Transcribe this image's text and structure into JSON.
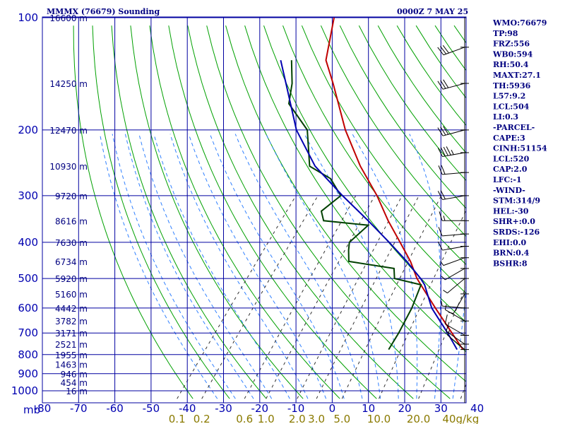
{
  "header": {
    "station": "MMMX (76679) Sounding",
    "time": "0000Z  7 MAY 25"
  },
  "indices": [
    "WMO:76679",
    "TP:98",
    "FRZ:556",
    "WB0:594",
    "RH:50.4",
    "MAXT:27.1",
    "TH:5936",
    "L57:9.2",
    "LCL:504",
    "LI:0.3",
    "-PARCEL-",
    "CAPE:3",
    "CINH:51154",
    "LCL:520",
    "CAP:2.0",
    "LFC:-1",
    "-WIND-",
    "STM:314/9",
    "HEL:-30",
    "SHR+:0.0",
    "SRDS:-126",
    "EHI:0.0",
    "BRN:0.4",
    "BSHR:8"
  ],
  "colors": {
    "isobar": "#0000a0",
    "isotherm": "#0000a0",
    "dry_adiabat": "#00a000",
    "moist_adiabat": "#3080ff",
    "mixing_ratio": "#303030",
    "temperature": "#c00000",
    "dewpoint": "#004000",
    "parcel": "#0000b0"
  },
  "chart_data": {
    "type": "skew-t",
    "pressure_axis": {
      "unit_label": "mb",
      "ticks": [
        100,
        200,
        300,
        400,
        500,
        600,
        700,
        800,
        900,
        1000
      ],
      "labels": [
        "100",
        "200",
        "300",
        "400",
        "500",
        "600",
        "700",
        "800",
        "900",
        "1000"
      ],
      "range": [
        100,
        1050
      ],
      "scale": "log"
    },
    "temperature_axis": {
      "ticks": [
        -80,
        -70,
        -60,
        -50,
        -40,
        -30,
        -20,
        -10,
        0,
        10,
        20,
        30,
        40
      ],
      "labels": [
        "-80",
        "-70",
        "-60",
        "-50",
        "-40",
        "-30",
        "-20",
        "-10",
        "0",
        "10",
        "20",
        "30",
        "40"
      ],
      "unit": "C"
    },
    "mixing_ratio_axis": {
      "labels": [
        "0.1",
        "0.2",
        "0.6",
        "1.0",
        "2.0",
        "3.0",
        "5.0",
        "10.0",
        "20.0",
        "40g/kg"
      ],
      "values": [
        0.1,
        0.2,
        0.6,
        1.0,
        2.0,
        3.0,
        5.0,
        10.0,
        20.0,
        40.0
      ]
    },
    "height_labels": [
      {
        "p": 100,
        "label": "16600 m"
      },
      {
        "p": 150,
        "label": "14250 m"
      },
      {
        "p": 200,
        "label": "12470 m"
      },
      {
        "p": 250,
        "label": "10930 m"
      },
      {
        "p": 300,
        "label": "9720 m"
      },
      {
        "p": 350,
        "label": "8616 m"
      },
      {
        "p": 400,
        "label": "7630 m"
      },
      {
        "p": 450,
        "label": "6734 m"
      },
      {
        "p": 500,
        "label": "5920 m"
      },
      {
        "p": 550,
        "label": "5160 m"
      },
      {
        "p": 600,
        "label": "4442 m"
      },
      {
        "p": 650,
        "label": "3782 m"
      },
      {
        "p": 700,
        "label": "3171 m"
      },
      {
        "p": 750,
        "label": "2521 m"
      },
      {
        "p": 800,
        "label": "1955 m"
      },
      {
        "p": 850,
        "label": "1463 m"
      },
      {
        "p": 900,
        "label": "946 m"
      },
      {
        "p": 950,
        "label": "454 m"
      },
      {
        "p": 1000,
        "label": "16 m"
      }
    ],
    "series": [
      {
        "key": "temperature",
        "points": [
          {
            "p": 775,
            "t": 27.1
          },
          {
            "p": 700,
            "t": 20.5
          },
          {
            "p": 600,
            "t": 10.5
          },
          {
            "p": 550,
            "t": 5.0
          },
          {
            "p": 500,
            "t": -1.0
          },
          {
            "p": 450,
            "t": -6.5
          },
          {
            "p": 400,
            "t": -13.5
          },
          {
            "p": 350,
            "t": -21.5
          },
          {
            "p": 300,
            "t": -30.0
          },
          {
            "p": 250,
            "t": -41.0
          },
          {
            "p": 200,
            "t": -53.0
          },
          {
            "p": 150,
            "t": -66.5
          },
          {
            "p": 130,
            "t": -73.5
          },
          {
            "p": 100,
            "t": -80.5
          }
        ]
      },
      {
        "key": "dewpoint",
        "points": [
          {
            "p": 775,
            "t": 6.6
          },
          {
            "p": 700,
            "t": 5.8
          },
          {
            "p": 600,
            "t": 4.0
          },
          {
            "p": 520,
            "t": 1.5
          },
          {
            "p": 500,
            "t": -7.2
          },
          {
            "p": 470,
            "t": -9.5
          },
          {
            "p": 450,
            "t": -23.5
          },
          {
            "p": 420,
            "t": -26.0
          },
          {
            "p": 400,
            "t": -27.5
          },
          {
            "p": 360,
            "t": -26.0
          },
          {
            "p": 350,
            "t": -39.3
          },
          {
            "p": 330,
            "t": -42.0
          },
          {
            "p": 300,
            "t": -40.0
          },
          {
            "p": 270,
            "t": -46.5
          },
          {
            "p": 250,
            "t": -55.0
          },
          {
            "p": 200,
            "t": -63.5
          },
          {
            "p": 170,
            "t": -74.3
          },
          {
            "p": 150,
            "t": -77.8
          },
          {
            "p": 130,
            "t": -83.0
          }
        ]
      },
      {
        "key": "parcel",
        "points": [
          {
            "p": 775,
            "t": 25.5
          },
          {
            "p": 700,
            "t": 19.3
          },
          {
            "p": 600,
            "t": 9.5
          },
          {
            "p": 520,
            "t": 2.5
          },
          {
            "p": 500,
            "t": 0.0
          },
          {
            "p": 450,
            "t": -7.5
          },
          {
            "p": 400,
            "t": -16.5
          },
          {
            "p": 350,
            "t": -27.0
          },
          {
            "p": 300,
            "t": -39.5
          },
          {
            "p": 250,
            "t": -53.5
          },
          {
            "p": 200,
            "t": -66.5
          },
          {
            "p": 150,
            "t": -79.5
          },
          {
            "p": 130,
            "t": -86.0
          }
        ]
      }
    ],
    "wind_barbs": [
      {
        "p": 120,
        "dir": 250,
        "spd": 30
      },
      {
        "p": 150,
        "dir": 255,
        "spd": 30
      },
      {
        "p": 200,
        "dir": 255,
        "spd": 30
      },
      {
        "p": 230,
        "dir": 260,
        "spd": 45
      },
      {
        "p": 260,
        "dir": 265,
        "spd": 20
      },
      {
        "p": 300,
        "dir": 260,
        "spd": 20
      },
      {
        "p": 350,
        "dir": 270,
        "spd": 15
      },
      {
        "p": 380,
        "dir": 265,
        "spd": 10
      },
      {
        "p": 410,
        "dir": 260,
        "spd": 10
      },
      {
        "p": 440,
        "dir": 250,
        "spd": 5
      },
      {
        "p": 470,
        "dir": 240,
        "spd": 5
      },
      {
        "p": 500,
        "dir": 230,
        "spd": 5
      },
      {
        "p": 550,
        "dir": 210,
        "spd": 5
      },
      {
        "p": 600,
        "dir": 275,
        "spd": 5
      },
      {
        "p": 650,
        "dir": 300,
        "spd": 5
      },
      {
        "p": 710,
        "dir": 300,
        "spd": 10
      },
      {
        "p": 750,
        "dir": 305,
        "spd": 10
      },
      {
        "p": 775,
        "dir": 310,
        "spd": 5
      }
    ]
  }
}
